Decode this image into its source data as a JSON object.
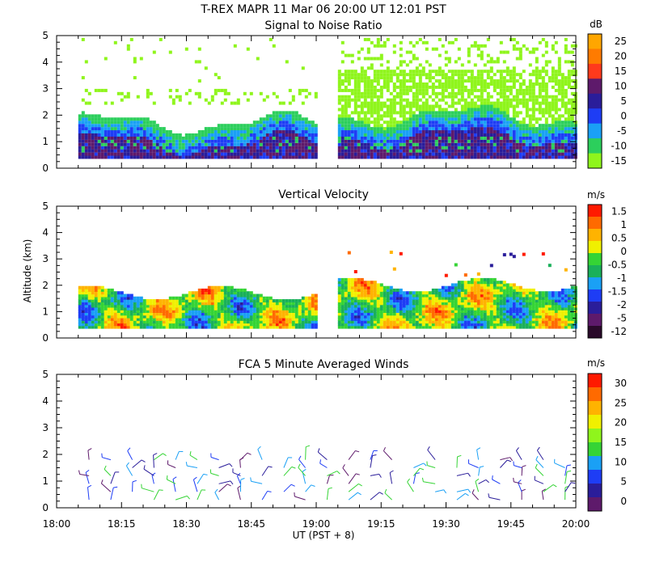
{
  "header": {
    "title": "T-REX   MAPR 11 Mar 06   20:00 UT   12:01   PST"
  },
  "x_axis": {
    "ticks": [
      "18:00",
      "18:15",
      "18:30",
      "18:45",
      "19:00",
      "19:15",
      "19:30",
      "19:45",
      "20:00"
    ],
    "label": "UT  (PST + 8)",
    "range_minutes": [
      0,
      120
    ]
  },
  "y_axis": {
    "label": "Altitude (km)",
    "ticks": [
      "0",
      "1",
      "2",
      "3",
      "4",
      "5"
    ],
    "range_km": [
      0,
      5
    ]
  },
  "chart_data": [
    {
      "type": "heatmap",
      "title": "Signal to Noise Ratio",
      "unit": "dB",
      "colorbar": {
        "labels": [
          "25",
          "20",
          "15",
          "10",
          "5",
          "0",
          "-5",
          "-10",
          "-15"
        ],
        "colors": [
          "#ffa600",
          "#ff7b00",
          "#ff3a1c",
          "#5e1a6b",
          "#2a1d9a",
          "#1e3df5",
          "#1aa0f5",
          "#2ccf5c",
          "#8ff51c"
        ]
      },
      "ylim": [
        0,
        5
      ],
      "data_segments_minutes": [
        [
          5,
          60
        ],
        [
          65,
          120
        ]
      ],
      "layers": [
        {
          "name": "noise speckle",
          "color": "#8ff51c",
          "ranges_km": [
            [
              2.2,
              2.9
            ],
            [
              3.0,
              4.9
            ]
          ]
        },
        {
          "name": "boundary layer top",
          "color": "#2ccf5c",
          "top_km_approx": 1.8
        },
        {
          "name": "strong echo band",
          "color": "#2a1d9a",
          "top_km_approx": 1.5
        }
      ]
    },
    {
      "type": "heatmap",
      "title": "Vertical Velocity",
      "unit": "m/s",
      "colorbar": {
        "labels": [
          "1.5",
          "1",
          "0.5",
          "0",
          "-0.5",
          "-1",
          "-1.5",
          "-2",
          "-5",
          "-12"
        ],
        "colors": [
          "#ff1a00",
          "#ff6a00",
          "#ffb300",
          "#f0f000",
          "#35d435",
          "#1ab05a",
          "#1aa0f5",
          "#1e3df5",
          "#2a1d9a",
          "#5e1a6b",
          "#2a0a2a"
        ]
      },
      "ylim": [
        0,
        5
      ],
      "data_segments_minutes": [
        [
          5,
          60
        ],
        [
          65,
          120
        ]
      ],
      "echo_top_km_approx": [
        1.7,
        2.1
      ]
    },
    {
      "type": "scatter",
      "title": "FCA 5 Minute Averaged Winds",
      "unit": "m/s",
      "colorbar": {
        "labels": [
          "30",
          "25",
          "20",
          "15",
          "10",
          "5",
          "0"
        ],
        "colors": [
          "#ff1a00",
          "#ff6a00",
          "#ffb300",
          "#f0f000",
          "#8ff51c",
          "#35d435",
          "#1aa0f5",
          "#1e3df5",
          "#2a1d9a",
          "#5e1a6b"
        ]
      },
      "ylim": [
        0,
        5
      ],
      "wind_barb_profiles_minutes": [
        7.5,
        12.5,
        17.5,
        22.5,
        27.5,
        32.5,
        37.5,
        42.5,
        47.5,
        52.5,
        57.5,
        62.5,
        67.5,
        72.5,
        77.5,
        82.5,
        87.5,
        92.5,
        97.5,
        102.5,
        107.5,
        112.5,
        117.5
      ],
      "barb_altitudes_km": [
        0.3,
        0.6,
        0.9,
        1.2,
        1.5,
        1.8
      ],
      "typical_speed_ms": [
        2,
        12
      ]
    }
  ]
}
